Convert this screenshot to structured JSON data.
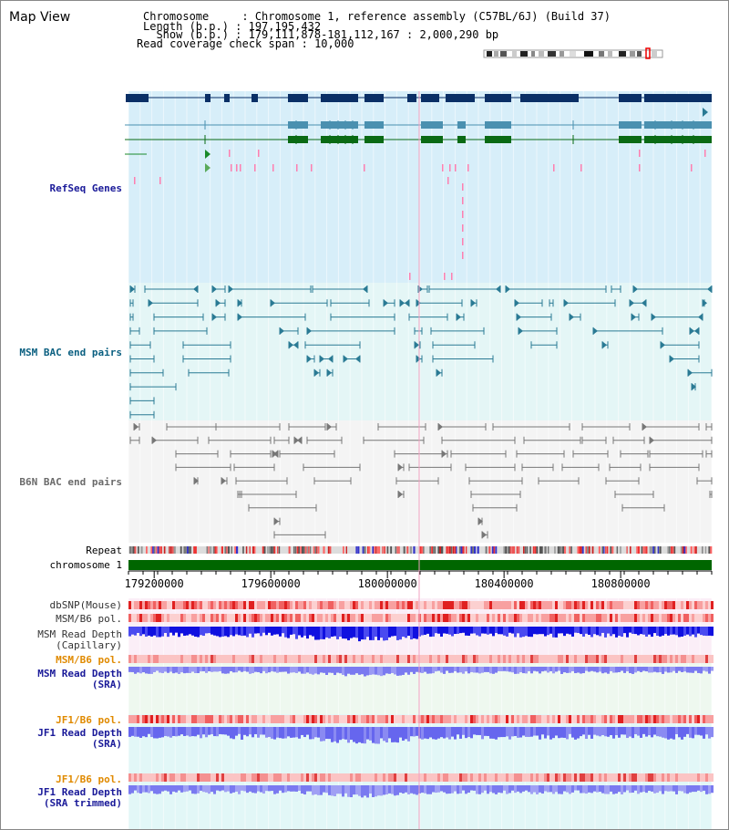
{
  "window": {
    "title": "Map View"
  },
  "header": {
    "rows": [
      {
        "key": "Chromosome     ",
        "sep": ": ",
        "value": "Chromosome 1, reference assembly (C57BL/6J) (Build 37)"
      },
      {
        "key": "Length (b.p.) ",
        "sep": ": ",
        "value": "197,195,432"
      },
      {
        "key": "  Show (b.p.) ",
        "sep": ": ",
        "value": "179,111,878-181,112,167 : 2,000,290 bp"
      },
      {
        "key": "Read coverage check span ",
        "sep": ": ",
        "value": "10,000"
      }
    ]
  },
  "tracks": {
    "refseq": "RefSeq Genes",
    "msm_bac": "MSM BAC end pairs",
    "b6n_bac": "B6N BAC end pairs",
    "repeat": "Repeat",
    "chromosome": "chromosome 1",
    "dbsnp": "dbSNP(Mouse)",
    "msm_b6_pol_1": "MSM/B6 pol.",
    "msm_read_depth_cap_1": "MSM Read Depth",
    "msm_read_depth_cap_2": "(Capillary)",
    "msm_b6_pol_2": "MSM/B6 pol.",
    "msm_read_depth_sra_1": "MSM Read Depth",
    "msm_read_depth_sra_2": "(SRA)",
    "jf1_b6_pol_1": "JF1/B6 pol.",
    "jf1_read_depth_sra_1": "JF1 Read Depth",
    "jf1_read_depth_sra_2": "(SRA)",
    "jf1_b6_pol_2": "JF1/B6 pol.",
    "jf1_read_depth_trim_1": "JF1 Read Depth",
    "jf1_read_depth_trim_2": "(SRA trimmed)"
  },
  "axis": {
    "ticks": [
      "179200000",
      "179600000",
      "180000000",
      "180400000",
      "180800000"
    ],
    "tick_values": [
      179200000,
      179600000,
      180000000,
      180400000,
      180800000
    ],
    "range": [
      179111878,
      181112167
    ]
  },
  "colors": {
    "refseq_bg": "#d7eef9",
    "bac_bg": "#e4f6f6",
    "gene_navy": "#0a2f66",
    "gene_teal": "#4a90b0",
    "gene_green": "#0a6a14",
    "msm_bac": "#2a7a94",
    "b6n_bac": "#777777",
    "chromosome_bar": "#006600",
    "depth_blue": "#1a1ae6",
    "depth_light": "#7a7af0",
    "label_navy": "#1a1a99",
    "label_teal": "#0a5f80",
    "label_orange": "#e08a00"
  }
}
